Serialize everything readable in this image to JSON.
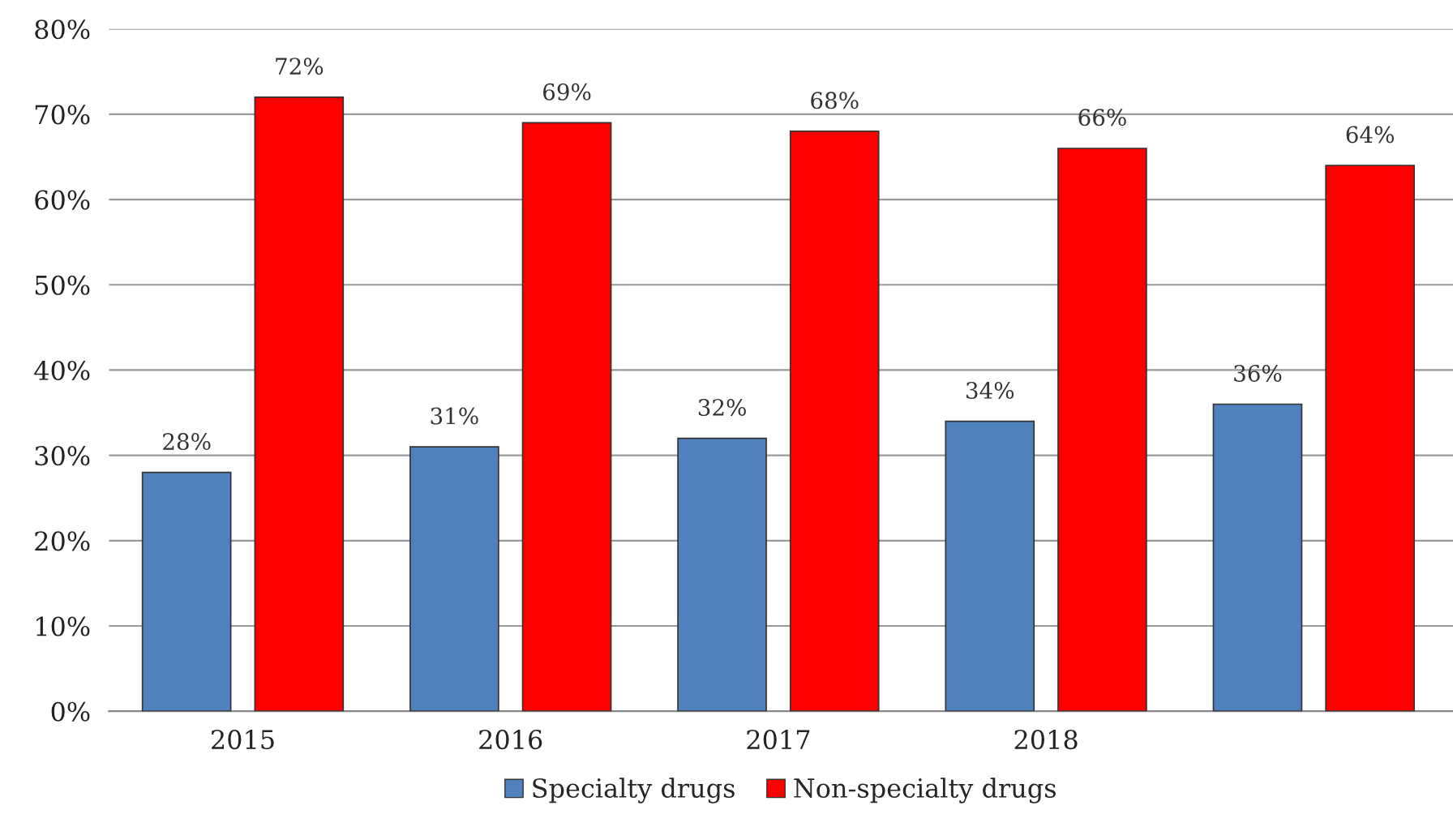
{
  "chart_data": {
    "type": "bar",
    "categories": [
      "2015",
      "2016",
      "2017",
      "2018",
      null
    ],
    "series": [
      {
        "name": "Specialty drugs",
        "color": "#4f81bd",
        "values": [
          28,
          31,
          32,
          34,
          36
        ],
        "value_labels": [
          "28%",
          "31%",
          "32%",
          "34%",
          "36%"
        ]
      },
      {
        "name": "Non-specialty drugs",
        "color": "#ff0000",
        "values": [
          72,
          69,
          68,
          66,
          64
        ],
        "value_labels": [
          "72%",
          "69%",
          "68%",
          "66%",
          "64%"
        ]
      }
    ],
    "ylim": [
      0,
      80
    ],
    "yticks": [
      {
        "value": 0,
        "label": "0%"
      },
      {
        "value": 10,
        "label": "10%"
      },
      {
        "value": 20,
        "label": "20%"
      },
      {
        "value": 30,
        "label": "30%"
      },
      {
        "value": 40,
        "label": "40%"
      },
      {
        "value": 50,
        "label": "50%"
      },
      {
        "value": 60,
        "label": "60%"
      },
      {
        "value": 70,
        "label": "70%"
      },
      {
        "value": 80,
        "label": "80%"
      }
    ],
    "grid": "y",
    "legend": "bottom"
  }
}
